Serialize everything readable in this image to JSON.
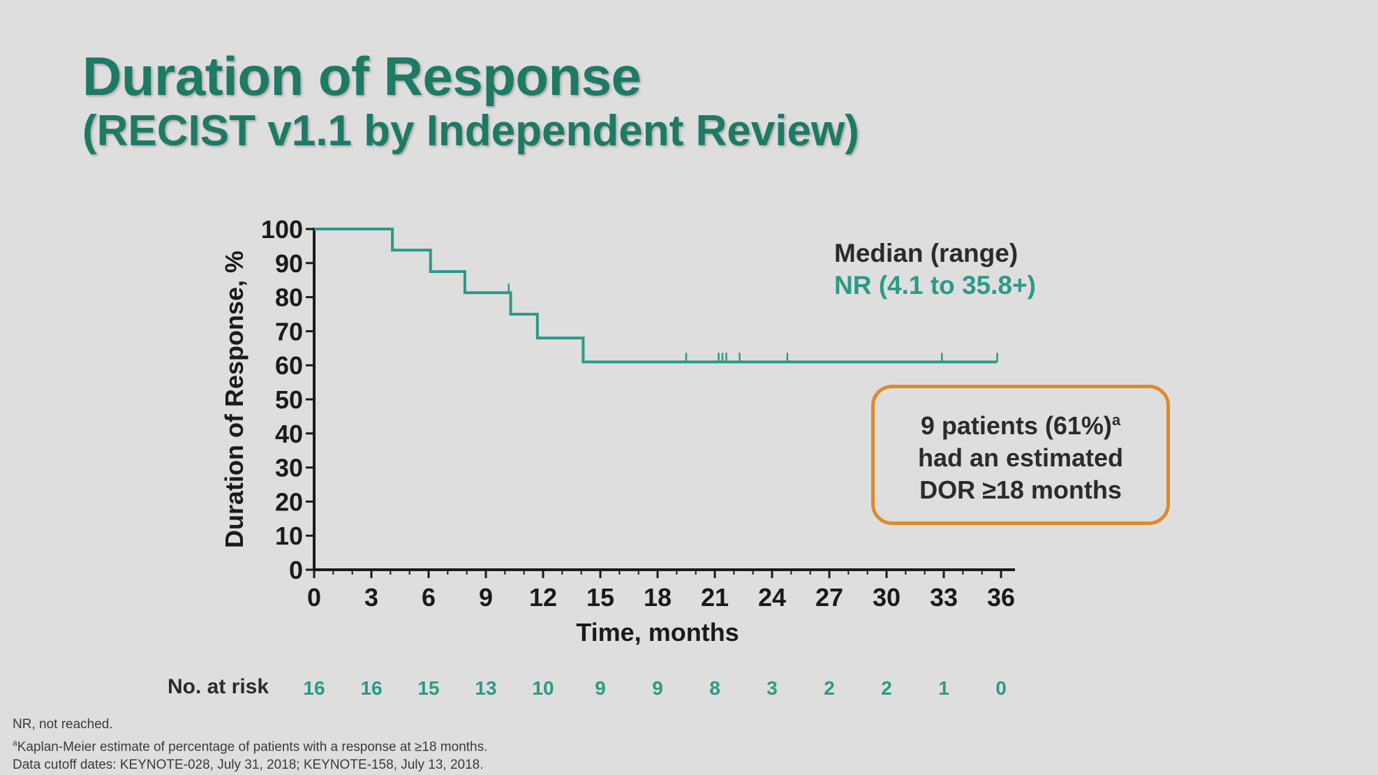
{
  "slide": {
    "title_line1": "Duration of Response",
    "title_line2": "(RECIST v1.1 by Independent Review)",
    "accent_color": "#1c7a65",
    "curve_color": "#2a9a86",
    "callout_border_color": "#dc8a2c"
  },
  "median": {
    "heading": "Median (range)",
    "value": "NR (4.1 to 35.8+)"
  },
  "callout": {
    "line1": "9 patients (61%)",
    "line1_sup": "a",
    "line2": "had an estimated",
    "line3": "DOR ≥18 months"
  },
  "risk": {
    "label": "No. at risk"
  },
  "footnotes": {
    "nr": "NR, not reached.",
    "a_sup": "a",
    "a_text": "Kaplan-Meier estimate of percentage of patients with a response at ≥18 months.",
    "cutoff": "Data cutoff dates: KEYNOTE-028, July 31, 2018; KEYNOTE-158, July 13, 2018."
  },
  "chart_data": {
    "type": "line",
    "subtype": "kaplan-meier-step",
    "xlabel": "Time, months",
    "ylabel": "Duration of  Response, %",
    "xlim": [
      0,
      36
    ],
    "ylim": [
      0,
      100
    ],
    "x_ticks": [
      0,
      3,
      6,
      9,
      12,
      15,
      18,
      21,
      24,
      27,
      30,
      33,
      36
    ],
    "y_ticks": [
      0,
      10,
      20,
      30,
      40,
      50,
      60,
      70,
      80,
      90,
      100
    ],
    "series": [
      {
        "name": "Duration of Response",
        "x": [
          0,
          4.1,
          6.1,
          7.9,
          10.3,
          11.7,
          14.1,
          35.8
        ],
        "y": [
          100,
          93.8,
          87.5,
          81.3,
          75.0,
          68.0,
          61.0,
          61.0
        ]
      }
    ],
    "censor_marks": [
      {
        "x": 10.2,
        "y": 81.3
      },
      {
        "x": 19.5,
        "y": 61.0
      },
      {
        "x": 21.2,
        "y": 61.0
      },
      {
        "x": 21.4,
        "y": 61.0
      },
      {
        "x": 21.6,
        "y": 61.0
      },
      {
        "x": 22.3,
        "y": 61.0
      },
      {
        "x": 24.8,
        "y": 61.0
      },
      {
        "x": 32.9,
        "y": 61.0
      },
      {
        "x": 35.8,
        "y": 61.0
      }
    ],
    "at_risk": {
      "times": [
        0,
        3,
        6,
        9,
        12,
        15,
        18,
        21,
        24,
        27,
        30,
        33,
        36
      ],
      "counts": [
        16,
        16,
        15,
        13,
        10,
        9,
        9,
        8,
        3,
        2,
        2,
        1,
        0
      ]
    }
  }
}
